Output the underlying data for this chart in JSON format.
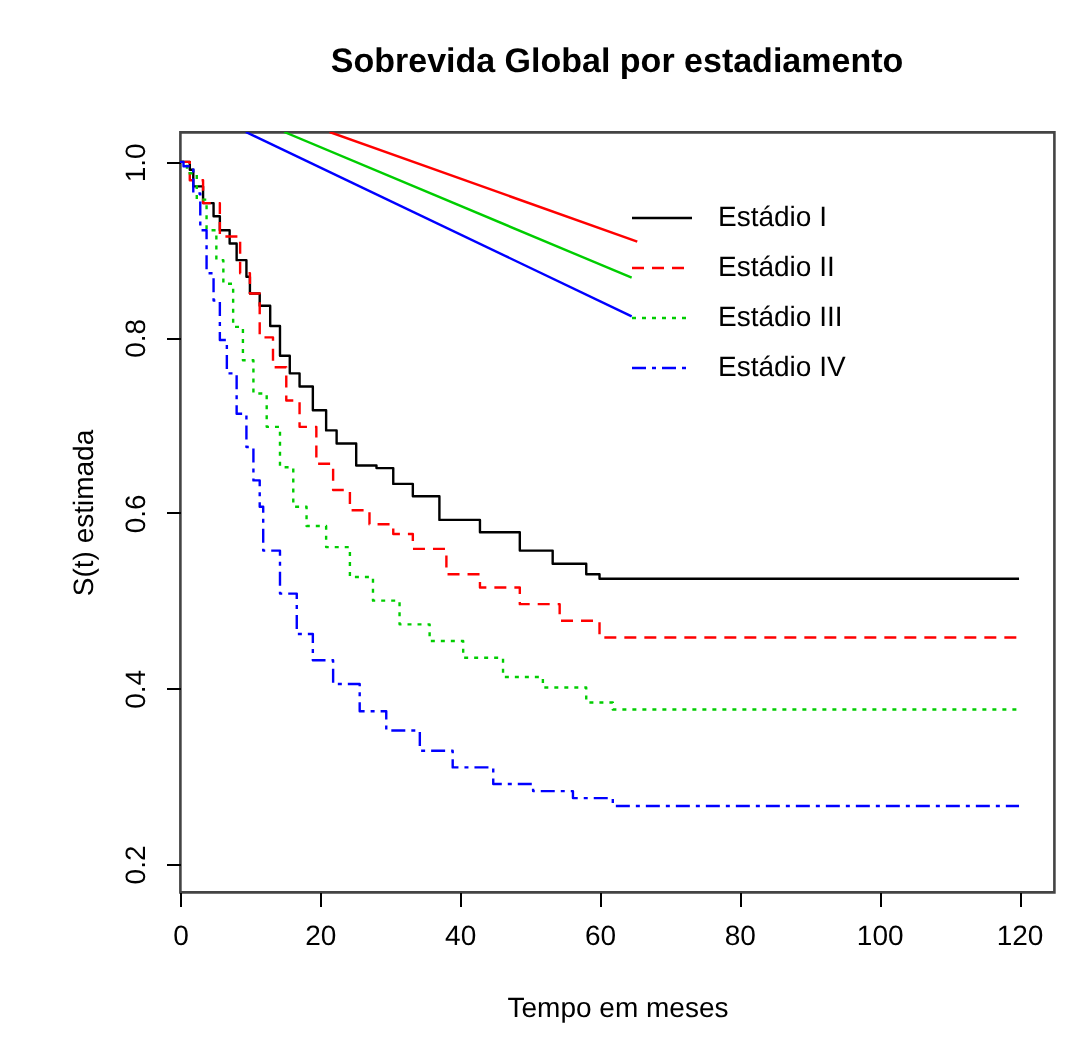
{
  "chart_data": {
    "type": "step",
    "title": "Sobrevida Global por estadiamento",
    "xlabel": "Tempo em meses",
    "ylabel": "S(t) estimada",
    "xlim": [
      0,
      125
    ],
    "ylim": [
      0.168,
      1.034
    ],
    "xticks": [
      0,
      20,
      40,
      60,
      80,
      100,
      120
    ],
    "yticks": [
      0.2,
      0.4,
      0.6,
      0.8,
      {
        "value": 1.0,
        "label": "1.0"
      }
    ],
    "grid": false,
    "legend": "top right",
    "marker": "none",
    "series": [
      {
        "name": "Estádio I",
        "color": "#000000",
        "line_style": "solid",
        "x": [
          0,
          1.4,
          1.9,
          3.3,
          4.8,
          5.7,
          7.1,
          8.1,
          9.5,
          10,
          11.4,
          12.9,
          14.3,
          15.7,
          17.1,
          19,
          20.9,
          22.4,
          25.2,
          28.1,
          30.5,
          33.3,
          37.1,
          42.9,
          48.6,
          53.3,
          58.1,
          60,
          120
        ],
        "values": [
          1.0,
          0.991,
          0.972,
          0.953,
          0.938,
          0.922,
          0.907,
          0.888,
          0.869,
          0.85,
          0.836,
          0.813,
          0.779,
          0.759,
          0.744,
          0.717,
          0.694,
          0.679,
          0.654,
          0.651,
          0.633,
          0.619,
          0.592,
          0.578,
          0.557,
          0.542,
          0.53,
          0.525,
          0.525
        ]
      },
      {
        "name": "Estádio II",
        "color": "#ff0000",
        "line_style": "dashed",
        "x": [
          0,
          1.4,
          3.3,
          5.7,
          8.6,
          10,
          11.4,
          13.3,
          15.2,
          17.1,
          19.5,
          21.9,
          24.3,
          27.1,
          30.5,
          33.3,
          38.1,
          42.9,
          48.6,
          54.3,
          60,
          120
        ],
        "values": [
          1.0,
          0.979,
          0.953,
          0.915,
          0.873,
          0.85,
          0.8,
          0.766,
          0.728,
          0.698,
          0.656,
          0.626,
          0.603,
          0.587,
          0.576,
          0.559,
          0.53,
          0.515,
          0.496,
          0.477,
          0.458,
          0.458
        ]
      },
      {
        "name": "Estádio III",
        "color": "#00cd00",
        "line_style": "dotted",
        "x": [
          0,
          1,
          2.4,
          3.8,
          5.2,
          6.2,
          7.6,
          9,
          10.5,
          12.4,
          14.3,
          16.2,
          18.1,
          20.9,
          24.3,
          27.6,
          31.4,
          35.7,
          40.5,
          46.2,
          51.9,
          58.1,
          61.9,
          120
        ],
        "values": [
          1.0,
          0.987,
          0.957,
          0.922,
          0.888,
          0.861,
          0.812,
          0.774,
          0.736,
          0.698,
          0.652,
          0.607,
          0.585,
          0.561,
          0.527,
          0.5,
          0.473,
          0.454,
          0.435,
          0.413,
          0.401,
          0.384,
          0.376,
          0.376
        ]
      },
      {
        "name": "Estádio IV",
        "color": "#0000ff",
        "line_style": "dashdot",
        "x": [
          0,
          0.5,
          1.9,
          2.9,
          3.8,
          4.8,
          5.7,
          6.7,
          8.1,
          9.5,
          10.5,
          11.4,
          11.9,
          14.3,
          16.7,
          19,
          21.9,
          25.7,
          29.5,
          34.3,
          39,
          44.8,
          50.5,
          56.2,
          61.9,
          120
        ],
        "values": [
          1.0,
          0.995,
          0.964,
          0.922,
          0.873,
          0.842,
          0.797,
          0.759,
          0.713,
          0.675,
          0.637,
          0.607,
          0.557,
          0.508,
          0.462,
          0.432,
          0.405,
          0.374,
          0.352,
          0.329,
          0.31,
          0.291,
          0.283,
          0.275,
          0.266,
          0.266
        ]
      },
      {
        "color": "#ff0000",
        "type": "line",
        "line_style": "solid",
        "x": [
          21.4,
          65.4
        ],
        "values": [
          1.034,
          0.909
        ]
      },
      {
        "color": "#00cd00",
        "type": "line",
        "line_style": "solid",
        "x": [
          14.9,
          64.6
        ],
        "values": [
          1.034,
          0.868
        ]
      },
      {
        "color": "#0000ff",
        "type": "line",
        "line_style": "solid",
        "x": [
          9.4,
          64.6
        ],
        "values": [
          1.034,
          0.824
        ]
      }
    ]
  }
}
